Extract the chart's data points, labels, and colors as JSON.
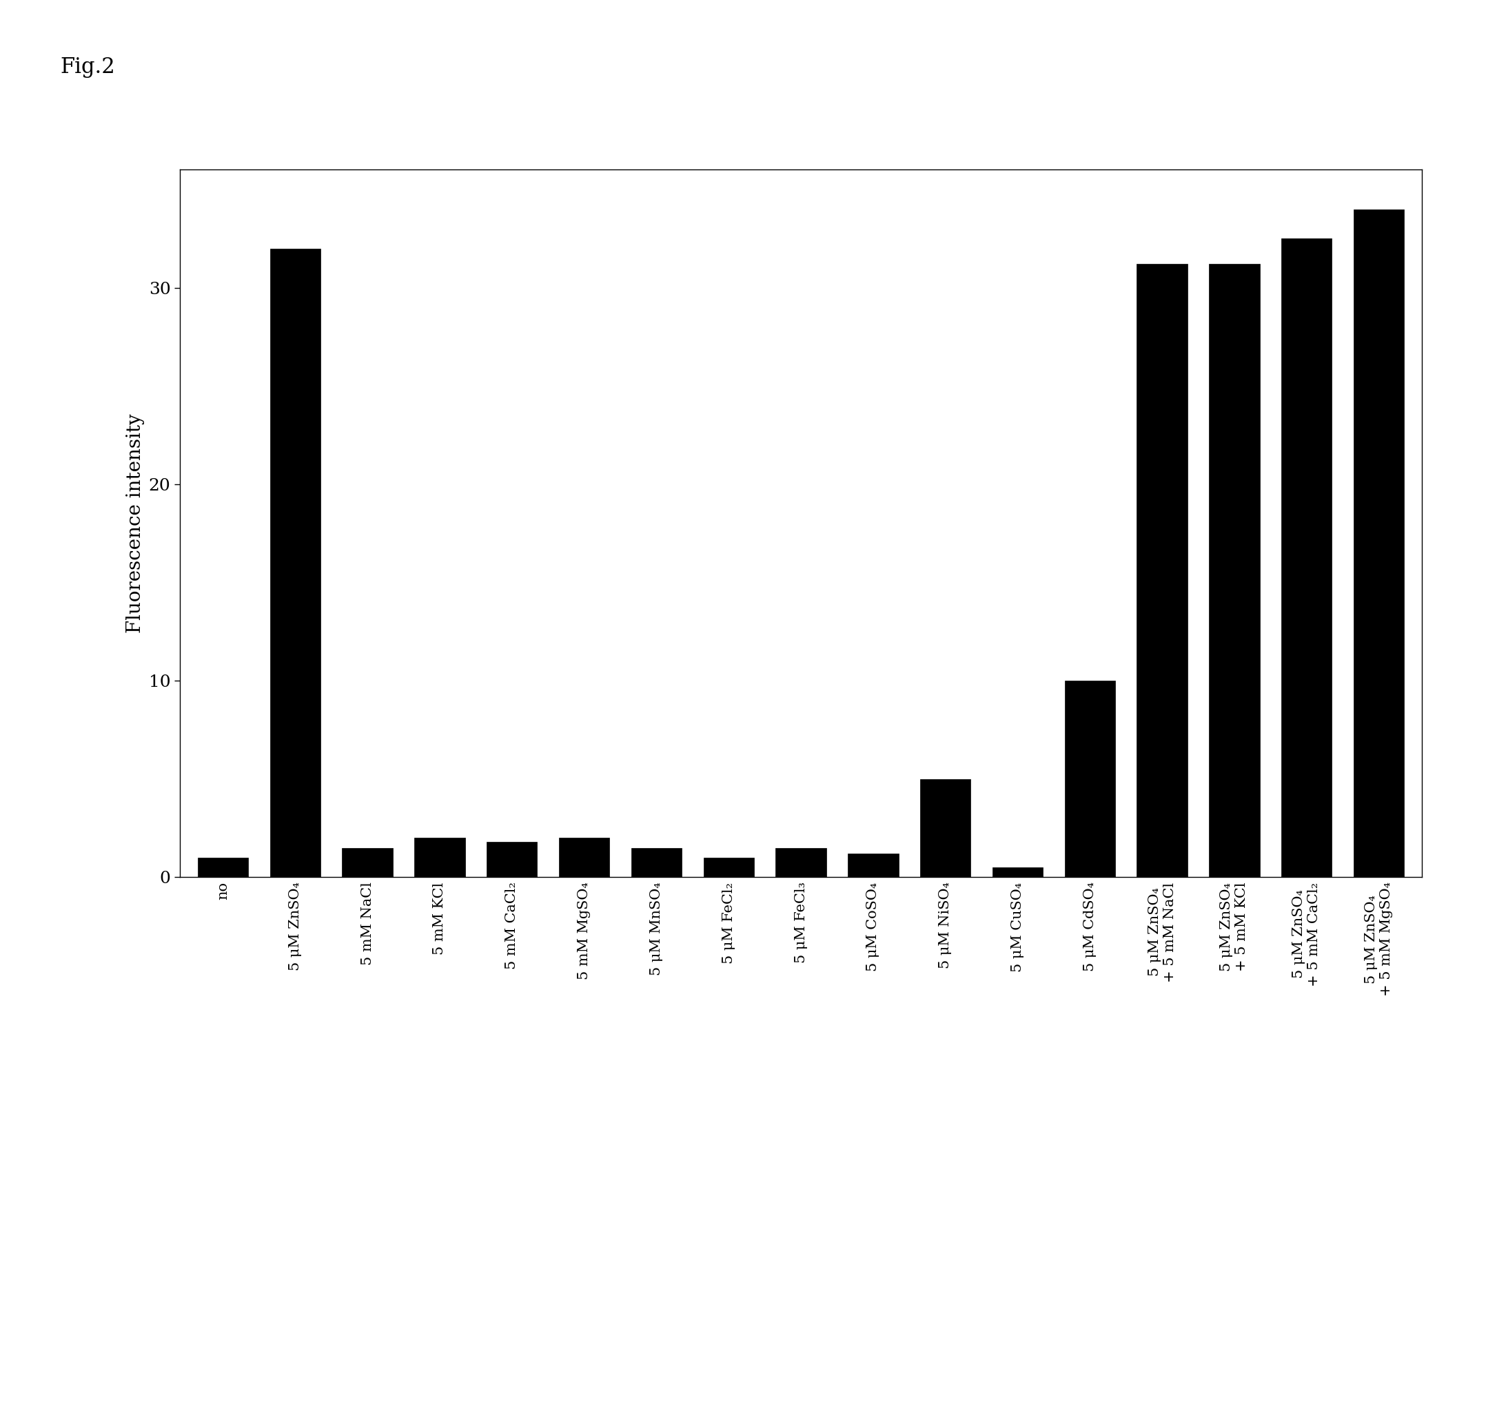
{
  "categories": [
    "no",
    "5 μM ZnSO₄",
    "5 mM NaCl",
    "5 mM KCl",
    "5 mM CaCl₂",
    "5 mM MgSO₄",
    "5 μM MnSO₄",
    "5 μM FeCl₂",
    "5 μM FeCl₃",
    "5 μM CoSO₄",
    "5 μM NiSO₄",
    "5 μM CuSO₄",
    "5 μM CdSO₄",
    "5 μM ZnSO₄\n+ 5 mM NaCl",
    "5 μM ZnSO₄\n+ 5 mM KCl",
    "5 μM ZnSO₄\n+ 5 mM CaCl₂",
    "5 μM ZnSO₄\n+ 5 mM MgSO₄"
  ],
  "values": [
    1.0,
    32.0,
    1.5,
    2.0,
    1.8,
    2.0,
    1.5,
    1.0,
    1.5,
    1.2,
    5.0,
    0.5,
    10.0,
    31.2,
    31.2,
    32.5,
    34.0
  ],
  "bar_color": "#000000",
  "ylabel": "Fluorescence intensity",
  "ylim": [
    0,
    36
  ],
  "yticks": [
    0,
    10,
    20,
    30
  ],
  "fig_title": "Fig.2",
  "background_color": "#ffffff",
  "bar_edge_color": "#000000",
  "title_fontsize": 22,
  "ylabel_fontsize": 20,
  "tick_fontsize": 18,
  "xlabel_fontsize": 15,
  "bar_width": 0.7
}
